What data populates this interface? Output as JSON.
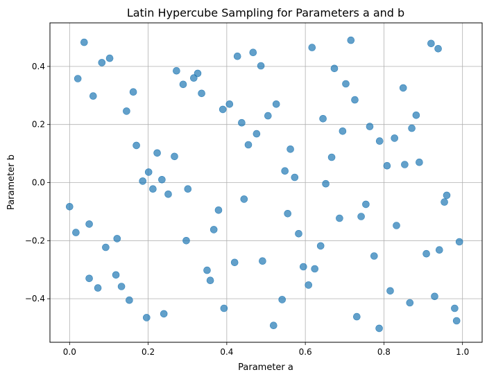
{
  "chart_data": {
    "type": "scatter",
    "title": "Latin Hypercube Sampling for Parameters a and b",
    "xlabel": "Parameter a",
    "ylabel": "Parameter b",
    "xlim": [
      -0.05,
      1.05
    ],
    "ylim": [
      -0.55,
      0.55
    ],
    "xticks": [
      0.0,
      0.2,
      0.4,
      0.6,
      0.8,
      1.0
    ],
    "xtick_labels": [
      "0.0",
      "0.2",
      "0.4",
      "0.6",
      "0.8",
      "1.0"
    ],
    "yticks": [
      -0.4,
      -0.2,
      0.0,
      0.2,
      0.4
    ],
    "ytick_labels": [
      "−0.4",
      "−0.2",
      "0.0",
      "0.2",
      "0.4"
    ],
    "grid": true,
    "marker_color": "#1f77b4",
    "marker_alpha": 0.7,
    "points": [
      [
        0.0,
        -0.083
      ],
      [
        0.016,
        -0.172
      ],
      [
        0.021,
        0.358
      ],
      [
        0.037,
        0.483
      ],
      [
        0.05,
        -0.143
      ],
      [
        0.05,
        -0.33
      ],
      [
        0.06,
        0.298
      ],
      [
        0.072,
        -0.363
      ],
      [
        0.082,
        0.413
      ],
      [
        0.092,
        -0.223
      ],
      [
        0.102,
        0.428
      ],
      [
        0.118,
        -0.318
      ],
      [
        0.121,
        -0.193
      ],
      [
        0.132,
        -0.358
      ],
      [
        0.145,
        0.246
      ],
      [
        0.152,
        -0.405
      ],
      [
        0.162,
        0.312
      ],
      [
        0.17,
        0.128
      ],
      [
        0.186,
        0.005
      ],
      [
        0.196,
        -0.465
      ],
      [
        0.201,
        0.036
      ],
      [
        0.212,
        -0.022
      ],
      [
        0.223,
        0.102
      ],
      [
        0.235,
        0.01
      ],
      [
        0.24,
        -0.452
      ],
      [
        0.251,
        -0.04
      ],
      [
        0.267,
        0.09
      ],
      [
        0.272,
        0.385
      ],
      [
        0.289,
        0.338
      ],
      [
        0.297,
        -0.2
      ],
      [
        0.301,
        -0.022
      ],
      [
        0.316,
        0.36
      ],
      [
        0.326,
        0.376
      ],
      [
        0.336,
        0.307
      ],
      [
        0.35,
        -0.302
      ],
      [
        0.358,
        -0.337
      ],
      [
        0.367,
        -0.162
      ],
      [
        0.379,
        -0.095
      ],
      [
        0.39,
        0.252
      ],
      [
        0.393,
        -0.433
      ],
      [
        0.407,
        0.27
      ],
      [
        0.42,
        -0.275
      ],
      [
        0.427,
        0.435
      ],
      [
        0.438,
        0.206
      ],
      [
        0.444,
        -0.057
      ],
      [
        0.455,
        0.13
      ],
      [
        0.467,
        0.448
      ],
      [
        0.476,
        0.168
      ],
      [
        0.487,
        0.402
      ],
      [
        0.491,
        -0.27
      ],
      [
        0.505,
        0.23
      ],
      [
        0.519,
        -0.492
      ],
      [
        0.526,
        0.27
      ],
      [
        0.541,
        -0.403
      ],
      [
        0.548,
        0.04
      ],
      [
        0.555,
        -0.107
      ],
      [
        0.562,
        0.115
      ],
      [
        0.573,
        0.018
      ],
      [
        0.583,
        -0.176
      ],
      [
        0.595,
        -0.29
      ],
      [
        0.608,
        -0.353
      ],
      [
        0.617,
        0.465
      ],
      [
        0.624,
        -0.297
      ],
      [
        0.639,
        -0.218
      ],
      [
        0.645,
        0.22
      ],
      [
        0.652,
        -0.004
      ],
      [
        0.667,
        0.087
      ],
      [
        0.674,
        0.393
      ],
      [
        0.687,
        -0.123
      ],
      [
        0.695,
        0.177
      ],
      [
        0.703,
        0.34
      ],
      [
        0.716,
        0.49
      ],
      [
        0.726,
        0.285
      ],
      [
        0.731,
        -0.462
      ],
      [
        0.742,
        -0.117
      ],
      [
        0.754,
        -0.075
      ],
      [
        0.764,
        0.193
      ],
      [
        0.775,
        -0.253
      ],
      [
        0.789,
        0.143
      ],
      [
        0.788,
        -0.502
      ],
      [
        0.808,
        0.058
      ],
      [
        0.816,
        -0.373
      ],
      [
        0.827,
        0.153
      ],
      [
        0.832,
        -0.148
      ],
      [
        0.849,
        0.326
      ],
      [
        0.853,
        0.062
      ],
      [
        0.866,
        -0.414
      ],
      [
        0.871,
        0.187
      ],
      [
        0.882,
        0.232
      ],
      [
        0.89,
        0.07
      ],
      [
        0.908,
        -0.245
      ],
      [
        0.92,
        0.479
      ],
      [
        0.929,
        -0.392
      ],
      [
        0.938,
        0.461
      ],
      [
        0.941,
        -0.232
      ],
      [
        0.954,
        -0.067
      ],
      [
        0.96,
        -0.044
      ],
      [
        0.98,
        -0.433
      ],
      [
        0.985,
        -0.476
      ],
      [
        0.992,
        -0.204
      ]
    ]
  }
}
